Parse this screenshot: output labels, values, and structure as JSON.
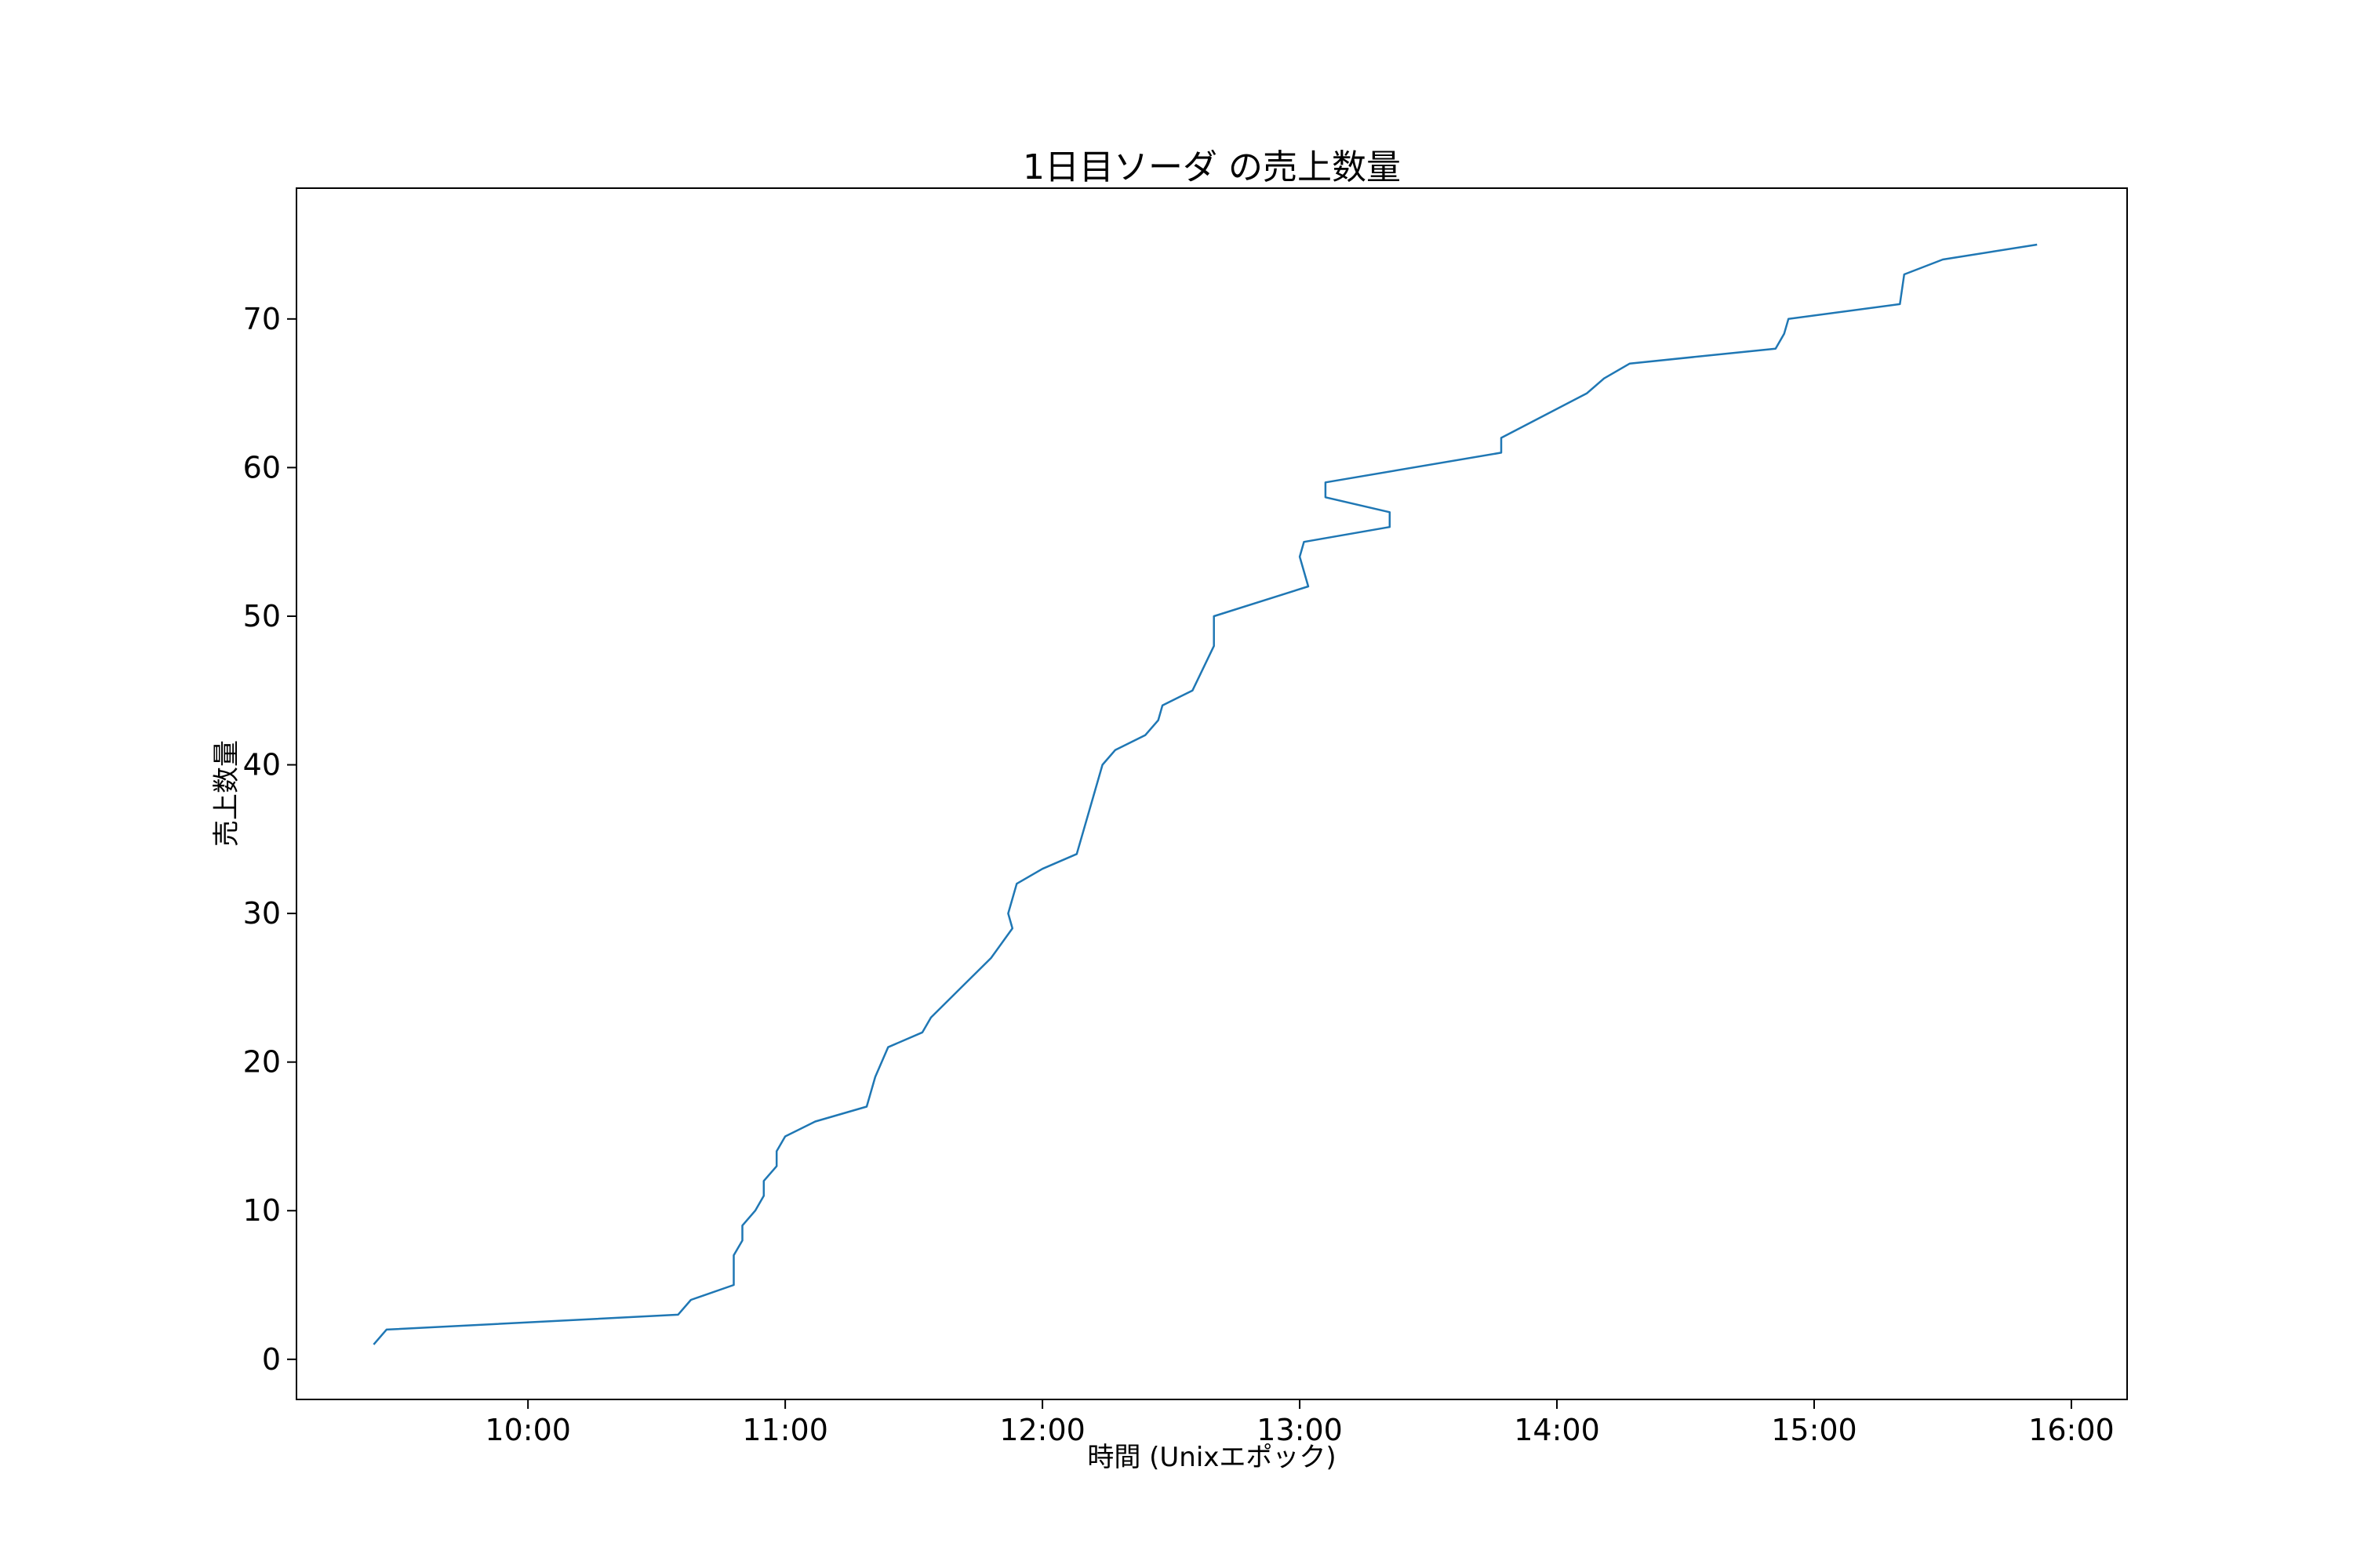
{
  "chart_data": {
    "type": "line",
    "title": "1日目ソーダ の売上数量",
    "xlabel": "時間 (Unixエポック)",
    "ylabel": "売上数量",
    "x_tick_labels": [
      "10:00",
      "11:00",
      "12:00",
      "13:00",
      "14:00",
      "15:00",
      "16:00"
    ],
    "x_tick_values": [
      "10:00",
      "11:00",
      "12:00",
      "13:00",
      "14:00",
      "15:00",
      "16:00"
    ],
    "y_ticks": [
      0,
      10,
      20,
      30,
      40,
      50,
      60,
      70
    ],
    "xlim": [
      "09:06",
      "16:13"
    ],
    "ylim": [
      -2.7,
      78.8
    ],
    "grid": false,
    "series": [
      {
        "color": "#1f77b4",
        "points": [
          [
            "09:24",
            1
          ],
          [
            "09:27",
            2
          ],
          [
            "10:35",
            3
          ],
          [
            "10:38",
            4
          ],
          [
            "10:48",
            5
          ],
          [
            "10:48",
            7
          ],
          [
            "10:50",
            8
          ],
          [
            "10:50",
            9
          ],
          [
            "10:53",
            10
          ],
          [
            "10:55",
            11
          ],
          [
            "10:55",
            12
          ],
          [
            "10:58",
            13
          ],
          [
            "10:58",
            14
          ],
          [
            "11:00",
            15
          ],
          [
            "11:07",
            16
          ],
          [
            "11:19",
            17
          ],
          [
            "11:21",
            19
          ],
          [
            "11:24",
            21
          ],
          [
            "11:32",
            22
          ],
          [
            "11:34",
            23
          ],
          [
            "11:41",
            25
          ],
          [
            "11:48",
            27
          ],
          [
            "11:53",
            29
          ],
          [
            "11:52",
            30
          ],
          [
            "11:54",
            32
          ],
          [
            "12:00",
            33
          ],
          [
            "12:08",
            34
          ],
          [
            "12:12",
            38
          ],
          [
            "12:14",
            40
          ],
          [
            "12:17",
            41
          ],
          [
            "12:24",
            42
          ],
          [
            "12:27",
            43
          ],
          [
            "12:28",
            44
          ],
          [
            "12:35",
            45
          ],
          [
            "12:40",
            48
          ],
          [
            "12:40",
            50
          ],
          [
            "13:02",
            52
          ],
          [
            "13:00",
            54
          ],
          [
            "13:01",
            55
          ],
          [
            "13:21",
            56
          ],
          [
            "13:21",
            57
          ],
          [
            "13:06",
            58
          ],
          [
            "13:06",
            59
          ],
          [
            "13:47",
            61
          ],
          [
            "13:47",
            62
          ],
          [
            "14:07",
            65
          ],
          [
            "14:11",
            66
          ],
          [
            "14:17",
            67
          ],
          [
            "14:51",
            68
          ],
          [
            "14:53",
            69
          ],
          [
            "14:54",
            70
          ],
          [
            "15:20",
            71
          ],
          [
            "15:21",
            73
          ],
          [
            "15:30",
            74
          ],
          [
            "15:52",
            75
          ]
        ]
      }
    ]
  }
}
